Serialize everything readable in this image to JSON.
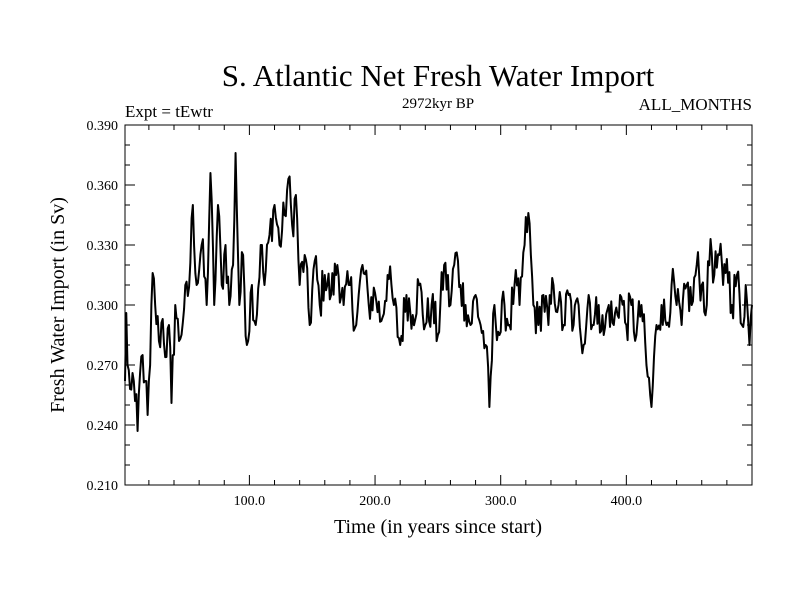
{
  "chart_data": {
    "type": "line",
    "title": "S. Atlantic Net Fresh Water Import",
    "subtitle": "2972kyr BP",
    "left_label": "Expt = tEwtr",
    "right_label": "ALL_MONTHS",
    "xlabel": "Time (in years since start)",
    "ylabel": "Fresh Water Import (in Sv)",
    "xlim": [
      1,
      500
    ],
    "ylim": [
      0.21,
      0.39
    ],
    "x_ticks": [
      100,
      200,
      300,
      400
    ],
    "x_tick_labels": [
      "100.0",
      "200.0",
      "300.0",
      "400.0"
    ],
    "y_ticks": [
      0.21,
      0.24,
      0.27,
      0.3,
      0.33,
      0.36,
      0.39
    ],
    "y_tick_labels": [
      "0.210",
      "0.240",
      "0.270",
      "0.300",
      "0.330",
      "0.360",
      "0.390"
    ],
    "x_minor_step": 20,
    "y_minor_step": 0.01,
    "series": [
      {
        "name": "Net fresh water import",
        "color": "#000000",
        "x_start": 1,
        "x_step": 1,
        "anchors": [
          [
            1,
            0.262
          ],
          [
            2,
            0.296
          ],
          [
            3,
            0.27
          ],
          [
            5,
            0.258
          ],
          [
            7,
            0.266
          ],
          [
            9,
            0.252
          ],
          [
            11,
            0.237
          ],
          [
            13,
            0.266
          ],
          [
            15,
            0.275
          ],
          [
            17,
            0.262
          ],
          [
            19,
            0.245
          ],
          [
            21,
            0.27
          ],
          [
            23,
            0.316
          ],
          [
            25,
            0.3
          ],
          [
            28,
            0.282
          ],
          [
            31,
            0.293
          ],
          [
            34,
            0.274
          ],
          [
            36,
            0.29
          ],
          [
            38,
            0.251
          ],
          [
            41,
            0.3
          ],
          [
            44,
            0.282
          ],
          [
            48,
            0.298
          ],
          [
            52,
            0.309
          ],
          [
            55,
            0.35
          ],
          [
            58,
            0.31
          ],
          [
            62,
            0.33
          ],
          [
            66,
            0.3
          ],
          [
            69,
            0.366
          ],
          [
            72,
            0.3
          ],
          [
            75,
            0.35
          ],
          [
            78,
            0.31
          ],
          [
            81,
            0.33
          ],
          [
            84,
            0.3
          ],
          [
            87,
            0.32
          ],
          [
            89,
            0.376
          ],
          [
            92,
            0.3
          ],
          [
            95,
            0.325
          ],
          [
            98,
            0.28
          ],
          [
            102,
            0.31
          ],
          [
            105,
            0.29
          ],
          [
            109,
            0.33
          ],
          [
            112,
            0.31
          ],
          [
            116,
            0.335
          ],
          [
            120,
            0.35
          ],
          [
            124,
            0.33
          ],
          [
            128,
            0.345
          ],
          [
            131,
            0.363
          ],
          [
            134,
            0.34
          ],
          [
            137,
            0.355
          ],
          [
            140,
            0.31
          ],
          [
            144,
            0.325
          ],
          [
            148,
            0.29
          ],
          [
            152,
            0.322
          ],
          [
            156,
            0.3
          ],
          [
            160,
            0.315
          ],
          [
            165,
            0.305
          ],
          [
            170,
            0.32
          ],
          [
            175,
            0.3
          ],
          [
            180,
            0.31
          ],
          [
            185,
            0.29
          ],
          [
            190,
            0.32
          ],
          [
            195,
            0.3
          ],
          [
            200,
            0.306
          ],
          [
            205,
            0.292
          ],
          [
            210,
            0.315
          ],
          [
            215,
            0.3
          ],
          [
            220,
            0.28
          ],
          [
            225,
            0.305
          ],
          [
            230,
            0.295
          ],
          [
            235,
            0.31
          ],
          [
            240,
            0.29
          ],
          [
            245,
            0.3
          ],
          [
            250,
            0.285
          ],
          [
            255,
            0.32
          ],
          [
            260,
            0.3
          ],
          [
            264,
            0.326
          ],
          [
            268,
            0.31
          ],
          [
            272,
            0.3
          ],
          [
            276,
            0.29
          ],
          [
            280,
            0.305
          ],
          [
            284,
            0.29
          ],
          [
            288,
            0.28
          ],
          [
            291,
            0.249
          ],
          [
            295,
            0.3
          ],
          [
            299,
            0.285
          ],
          [
            303,
            0.3
          ],
          [
            307,
            0.29
          ],
          [
            311,
            0.31
          ],
          [
            315,
            0.3
          ],
          [
            319,
            0.33
          ],
          [
            322,
            0.346
          ],
          [
            326,
            0.3
          ],
          [
            330,
            0.29
          ],
          [
            334,
            0.305
          ],
          [
            338,
            0.29
          ],
          [
            342,
            0.31
          ],
          [
            346,
            0.3
          ],
          [
            350,
            0.29
          ],
          [
            354,
            0.305
          ],
          [
            358,
            0.29
          ],
          [
            362,
            0.3
          ],
          [
            366,
            0.28
          ],
          [
            370,
            0.305
          ],
          [
            374,
            0.29
          ],
          [
            378,
            0.3
          ],
          [
            382,
            0.285
          ],
          [
            386,
            0.3
          ],
          [
            390,
            0.29
          ],
          [
            395,
            0.305
          ],
          [
            400,
            0.29
          ],
          [
            404,
            0.3
          ],
          [
            408,
            0.285
          ],
          [
            412,
            0.3
          ],
          [
            416,
            0.27
          ],
          [
            420,
            0.249
          ],
          [
            424,
            0.29
          ],
          [
            428,
            0.3
          ],
          [
            432,
            0.29
          ],
          [
            436,
            0.31
          ],
          [
            440,
            0.3
          ],
          [
            444,
            0.29
          ],
          [
            448,
            0.31
          ],
          [
            452,
            0.3
          ],
          [
            456,
            0.32
          ],
          [
            460,
            0.31
          ],
          [
            464,
            0.3
          ],
          [
            467,
            0.333
          ],
          [
            470,
            0.315
          ],
          [
            474,
            0.325
          ],
          [
            477,
            0.31
          ],
          [
            480,
            0.323
          ],
          [
            484,
            0.3
          ],
          [
            488,
            0.315
          ],
          [
            492,
            0.29
          ],
          [
            495,
            0.31
          ],
          [
            498,
            0.28
          ],
          [
            500,
            0.3
          ]
        ],
        "noise_amplitude": 0.011
      }
    ]
  }
}
